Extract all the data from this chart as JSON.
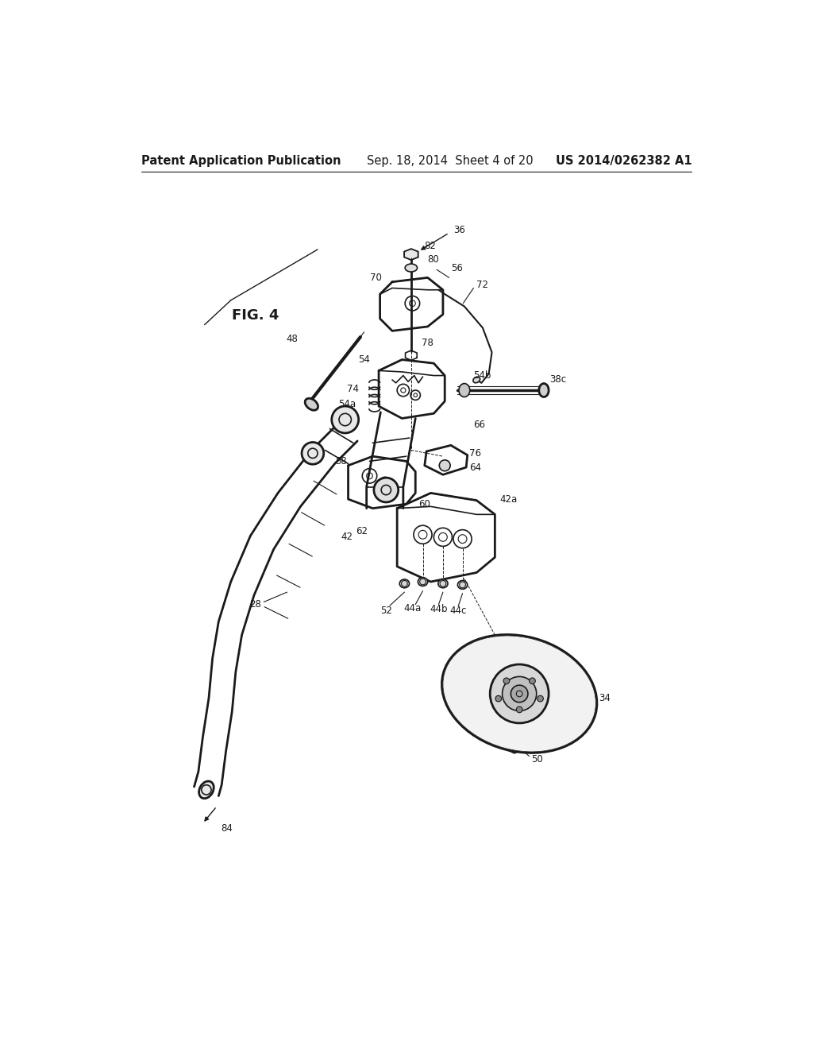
{
  "bg_color": "#ffffff",
  "line_color": "#1a1a1a",
  "header_left": "Patent Application Publication",
  "header_mid": "Sep. 18, 2014  Sheet 4 of 20",
  "header_right": "US 2014/0262382 A1",
  "fig_label": "FIG. 4",
  "title_fontsize": 10.5,
  "label_fontsize": 8.5,
  "fig_label_fontsize": 13
}
